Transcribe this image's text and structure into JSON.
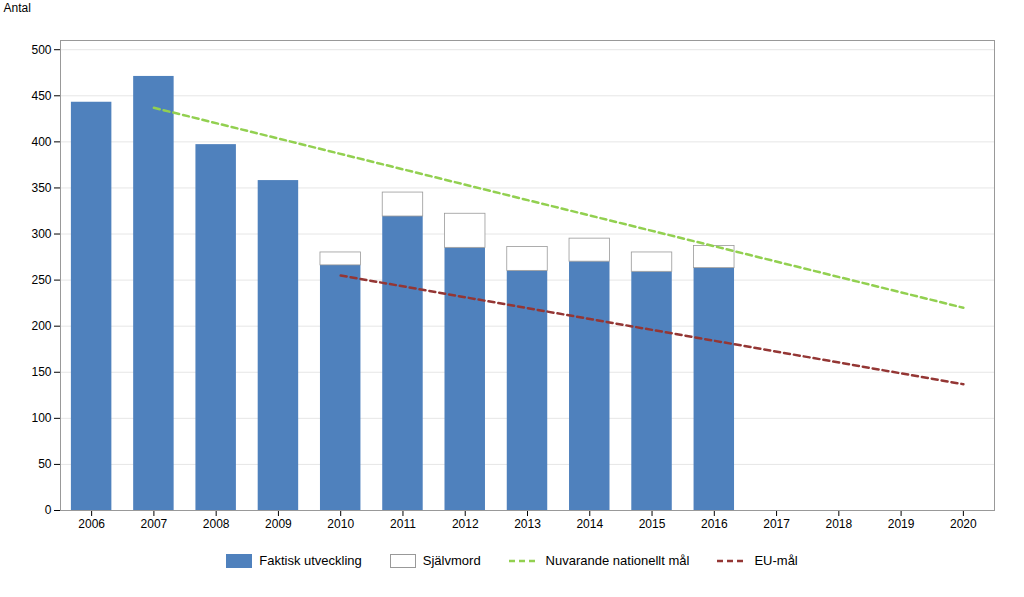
{
  "chart_data": {
    "type": "bar",
    "stacked": true,
    "ylabel": "Antal",
    "x": [
      2006,
      2007,
      2008,
      2009,
      2010,
      2011,
      2012,
      2013,
      2014,
      2015,
      2016,
      2017,
      2018,
      2019,
      2020
    ],
    "series": [
      {
        "name": "Faktisk utveckling",
        "type": "bar",
        "color": "#4F81BD",
        "values": [
          443,
          471,
          397,
          358,
          266,
          319,
          285,
          260,
          270,
          259,
          263,
          0,
          0,
          0,
          0
        ]
      },
      {
        "name": "Självmord",
        "type": "bar",
        "color": "#FFFFFF",
        "values": [
          0,
          0,
          0,
          0,
          14,
          26,
          37,
          26,
          25,
          21,
          24,
          0,
          0,
          0,
          0
        ]
      },
      {
        "name": "Nuvarande nationellt mål",
        "type": "line",
        "line_style": "dashed",
        "color": "#92D050",
        "x": [
          2007,
          2020
        ],
        "values": [
          437,
          220
        ]
      },
      {
        "name": "EU-mål",
        "type": "line",
        "line_style": "dashed",
        "color": "#943634",
        "x": [
          2010,
          2020
        ],
        "values": [
          255,
          137
        ]
      }
    ],
    "xlim": [
      2005.5,
      2020.5
    ],
    "xticks": [
      2006,
      2007,
      2008,
      2009,
      2010,
      2011,
      2012,
      2013,
      2014,
      2015,
      2016,
      2017,
      2018,
      2019,
      2020
    ],
    "ylim": [
      0,
      510
    ],
    "yticks": [
      0,
      50,
      100,
      150,
      200,
      250,
      300,
      350,
      400,
      450,
      500
    ],
    "grid": true,
    "legend": "bottom"
  }
}
